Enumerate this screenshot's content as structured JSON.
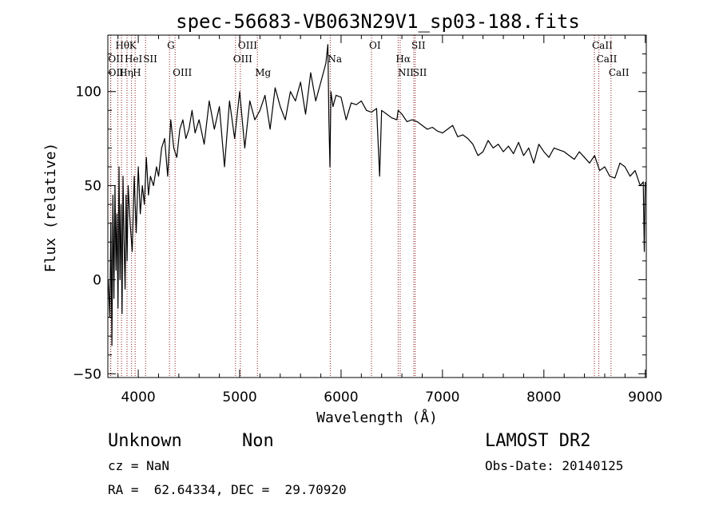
{
  "chart_data": {
    "type": "line",
    "title": "spec-56683-VB063N29V1_sp03-188.fits",
    "xlabel": "Wavelength (Å)",
    "ylabel": "Flux (relative)",
    "xlim": [
      3700,
      9010
    ],
    "ylim": [
      -52,
      130
    ],
    "xticks": [
      4000,
      5000,
      6000,
      7000,
      8000,
      9000
    ],
    "yticks": [
      -50,
      0,
      50,
      100
    ],
    "grid": false,
    "line_color": "#000000",
    "line_marker_color": "#8b1a1a",
    "series": [
      {
        "x": [
          3705,
          3720,
          3730,
          3740,
          3750,
          3760,
          3770,
          3780,
          3790,
          3800,
          3810,
          3820,
          3830,
          3840,
          3850,
          3860,
          3870,
          3880,
          3890,
          3900,
          3920,
          3940,
          3960,
          3980,
          4000,
          4020,
          4040,
          4060,
          4080,
          4100,
          4120,
          4150,
          4180,
          4200,
          4230,
          4260,
          4290,
          4320,
          4350,
          4380,
          4410,
          4440,
          4470,
          4500,
          4530,
          4560,
          4600,
          4650,
          4700,
          4750,
          4800,
          4850,
          4900,
          4950,
          5000,
          5050,
          5100,
          5150,
          5200,
          5250,
          5300,
          5350,
          5400,
          5450,
          5500,
          5550,
          5600,
          5650,
          5700,
          5750,
          5800,
          5850,
          5870,
          5880,
          5890,
          5900,
          5920,
          5950,
          6000,
          6050,
          6100,
          6150,
          6200,
          6250,
          6300,
          6350,
          6380,
          6400,
          6450,
          6500,
          6550,
          6563,
          6600,
          6650,
          6700,
          6750,
          6800,
          6850,
          6900,
          6950,
          7000,
          7050,
          7100,
          7150,
          7200,
          7250,
          7300,
          7350,
          7400,
          7450,
          7500,
          7550,
          7600,
          7650,
          7700,
          7750,
          7800,
          7850,
          7900,
          7950,
          8000,
          8050,
          8100,
          8150,
          8200,
          8250,
          8300,
          8350,
          8400,
          8450,
          8500,
          8550,
          8600,
          8650,
          8700,
          8750,
          8800,
          8850,
          8900,
          8950,
          8980,
          8990,
          9000
        ],
        "y": [
          0,
          -20,
          30,
          -35,
          45,
          -10,
          50,
          5,
          35,
          -15,
          60,
          0,
          40,
          -18,
          55,
          20,
          -5,
          45,
          10,
          50,
          30,
          15,
          55,
          25,
          60,
          35,
          50,
          40,
          65,
          45,
          55,
          50,
          60,
          55,
          70,
          75,
          55,
          85,
          70,
          65,
          80,
          85,
          75,
          80,
          90,
          78,
          85,
          72,
          95,
          80,
          92,
          60,
          95,
          75,
          100,
          70,
          95,
          85,
          90,
          98,
          80,
          102,
          92,
          85,
          100,
          95,
          105,
          88,
          110,
          95,
          105,
          115,
          125,
          85,
          60,
          100,
          92,
          98,
          97,
          85,
          94,
          93,
          95,
          90,
          89,
          91,
          55,
          90,
          88,
          86,
          85,
          90,
          88,
          84,
          85,
          84,
          82,
          80,
          81,
          79,
          78,
          80,
          82,
          76,
          77,
          75,
          72,
          66,
          68,
          74,
          70,
          72,
          68,
          71,
          67,
          73,
          66,
          70,
          62,
          72,
          68,
          65,
          70,
          69,
          68,
          66,
          64,
          68,
          65,
          62,
          66,
          58,
          60,
          55,
          54,
          62,
          60,
          55,
          58,
          50,
          52,
          15,
          52
        ]
      }
    ],
    "line_markers": [
      {
        "label": "Hθ",
        "x": 3798,
        "row": 0
      },
      {
        "label": "K",
        "x": 3934,
        "row": 0
      },
      {
        "label": "G",
        "x": 4308,
        "row": 0
      },
      {
        "label": "OIII",
        "x": 5007,
        "row": 0
      },
      {
        "label": "OI",
        "x": 6300,
        "row": 0
      },
      {
        "label": "SII",
        "x": 6717,
        "row": 0
      },
      {
        "label": "CaII",
        "x": 8498,
        "row": 0
      },
      {
        "label": "OII",
        "x": 3727,
        "row": 1
      },
      {
        "label": "HeI",
        "x": 3889,
        "row": 1
      },
      {
        "label": "SII",
        "x": 4072,
        "row": 1
      },
      {
        "label": "OIII",
        "x": 4959,
        "row": 1
      },
      {
        "label": "Na",
        "x": 5893,
        "row": 1
      },
      {
        "label": "Hα",
        "x": 6563,
        "row": 1
      },
      {
        "label": "CaII",
        "x": 8542,
        "row": 1
      },
      {
        "label": "OII",
        "x": 3729,
        "row": 2
      },
      {
        "label": "Hη",
        "x": 3835,
        "row": 2
      },
      {
        "label": "H",
        "x": 3969,
        "row": 2
      },
      {
        "label": "OIII",
        "x": 4363,
        "row": 2
      },
      {
        "label": "Mg",
        "x": 5175,
        "row": 2
      },
      {
        "label": "NII",
        "x": 6583,
        "row": 2
      },
      {
        "label": "SII",
        "x": 6731,
        "row": 2
      },
      {
        "label": "CaII",
        "x": 8662,
        "row": 2
      }
    ]
  },
  "info": {
    "object_class": "Unknown",
    "subclass": "Non",
    "survey": "LAMOST DR2",
    "cz": "cz = NaN",
    "obs_date": "Obs-Date: 20140125",
    "coords": "RA =  62.64334, DEC =  29.70920"
  }
}
